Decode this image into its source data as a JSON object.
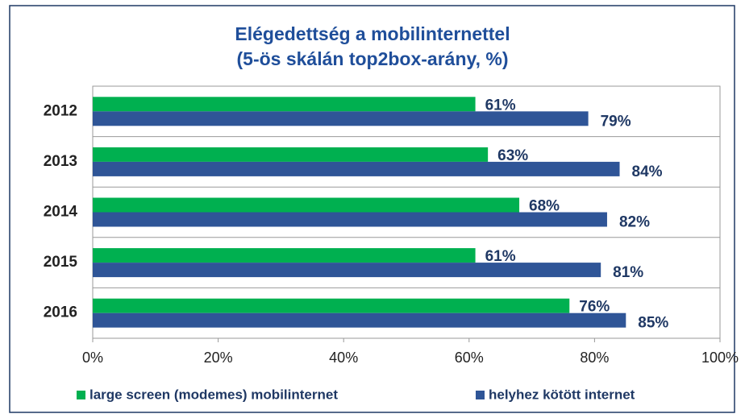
{
  "chart_data": {
    "type": "hbar",
    "title": "Elégedettség a mobilinternettel",
    "subtitle": "(5-ös skálán top2box-arány, %)",
    "categories": [
      "2012",
      "2013",
      "2014",
      "2015",
      "2016"
    ],
    "series": [
      {
        "name": "large screen (modemes) mobilinternet",
        "color": "#00b050",
        "values": [
          61,
          63,
          68,
          61,
          76
        ],
        "value_labels": [
          "61%",
          "63%",
          "68%",
          "61%",
          "76%"
        ]
      },
      {
        "name": "helyhez kötött internet",
        "color": "#2f5597",
        "values": [
          79,
          84,
          82,
          81,
          85
        ],
        "value_labels": [
          "79%",
          "84%",
          "82%",
          "81%",
          "85%"
        ]
      }
    ],
    "xlim": [
      0,
      100
    ],
    "xticks": [
      {
        "value": 0,
        "label": "0%"
      },
      {
        "value": 20,
        "label": "20%"
      },
      {
        "value": 40,
        "label": "40%"
      },
      {
        "value": 60,
        "label": "60%"
      },
      {
        "value": 80,
        "label": "80%"
      },
      {
        "value": 100,
        "label": "100%"
      }
    ]
  }
}
